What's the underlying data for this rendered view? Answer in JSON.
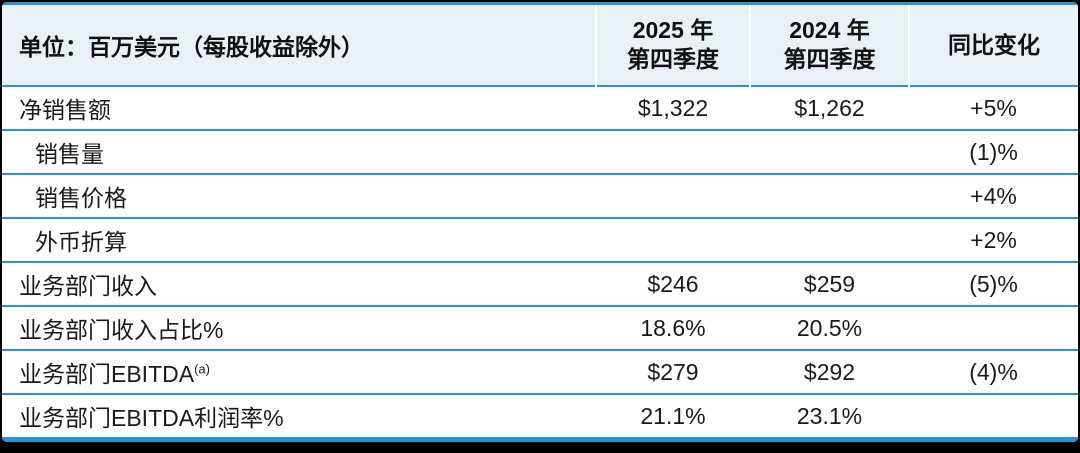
{
  "colors": {
    "accent_blue": "#2697d4",
    "header_bg": "#e9f0f7",
    "frame_black": "#000000",
    "text": "#1a1a1a"
  },
  "table": {
    "unit_header": "单位：百万美元（每股收益除外）",
    "col_2025": {
      "line1": "2025 年",
      "line2": "第四季度"
    },
    "col_2024": {
      "line1": "2024 年",
      "line2": "第四季度"
    },
    "col_change": "同比变化",
    "rows": [
      {
        "label": "净销售额",
        "sup": "",
        "q4_2025": "$1,322",
        "q4_2024": "$1,262",
        "yoy": "+5%"
      },
      {
        "label": "销售量",
        "sup": "",
        "q4_2025": "",
        "q4_2024": "",
        "yoy": "(1)%"
      },
      {
        "label": "销售价格",
        "sup": "",
        "q4_2025": "",
        "q4_2024": "",
        "yoy": "+4%"
      },
      {
        "label": "外币折算",
        "sup": "",
        "q4_2025": "",
        "q4_2024": "",
        "yoy": "+2%"
      },
      {
        "label": "业务部门收入",
        "sup": "",
        "q4_2025": "$246",
        "q4_2024": "$259",
        "yoy": "(5)%"
      },
      {
        "label": "业务部门收入占比%",
        "sup": "",
        "q4_2025": "18.6%",
        "q4_2024": "20.5%",
        "yoy": ""
      },
      {
        "label": "业务部门EBITDA",
        "sup": "(a)",
        "q4_2025": "$279",
        "q4_2024": "$292",
        "yoy": "(4)%"
      },
      {
        "label": "业务部门EBITDA利润率%",
        "sup": "",
        "q4_2025": "21.1%",
        "q4_2024": "23.1%",
        "yoy": ""
      }
    ]
  },
  "chart_data": {
    "type": "table",
    "title": "单位：百万美元（每股收益除外）",
    "columns": [
      "单位：百万美元（每股收益除外）",
      "2025 年 第四季度",
      "2024 年 第四季度",
      "同比变化"
    ],
    "rows": [
      [
        "净销售额",
        "$1,322",
        "$1,262",
        "+5%"
      ],
      [
        "销售量",
        "",
        "",
        "(1)%"
      ],
      [
        "销售价格",
        "",
        "",
        "+4%"
      ],
      [
        "外币折算",
        "",
        "",
        "+2%"
      ],
      [
        "业务部门收入",
        "$246",
        "$259",
        "(5)%"
      ],
      [
        "业务部门收入占比%",
        "18.6%",
        "20.5%",
        ""
      ],
      [
        "业务部门EBITDA(a)",
        "$279",
        "$292",
        "(4)%"
      ],
      [
        "业务部门EBITDA利润率%",
        "21.1%",
        "23.1%",
        ""
      ]
    ]
  }
}
